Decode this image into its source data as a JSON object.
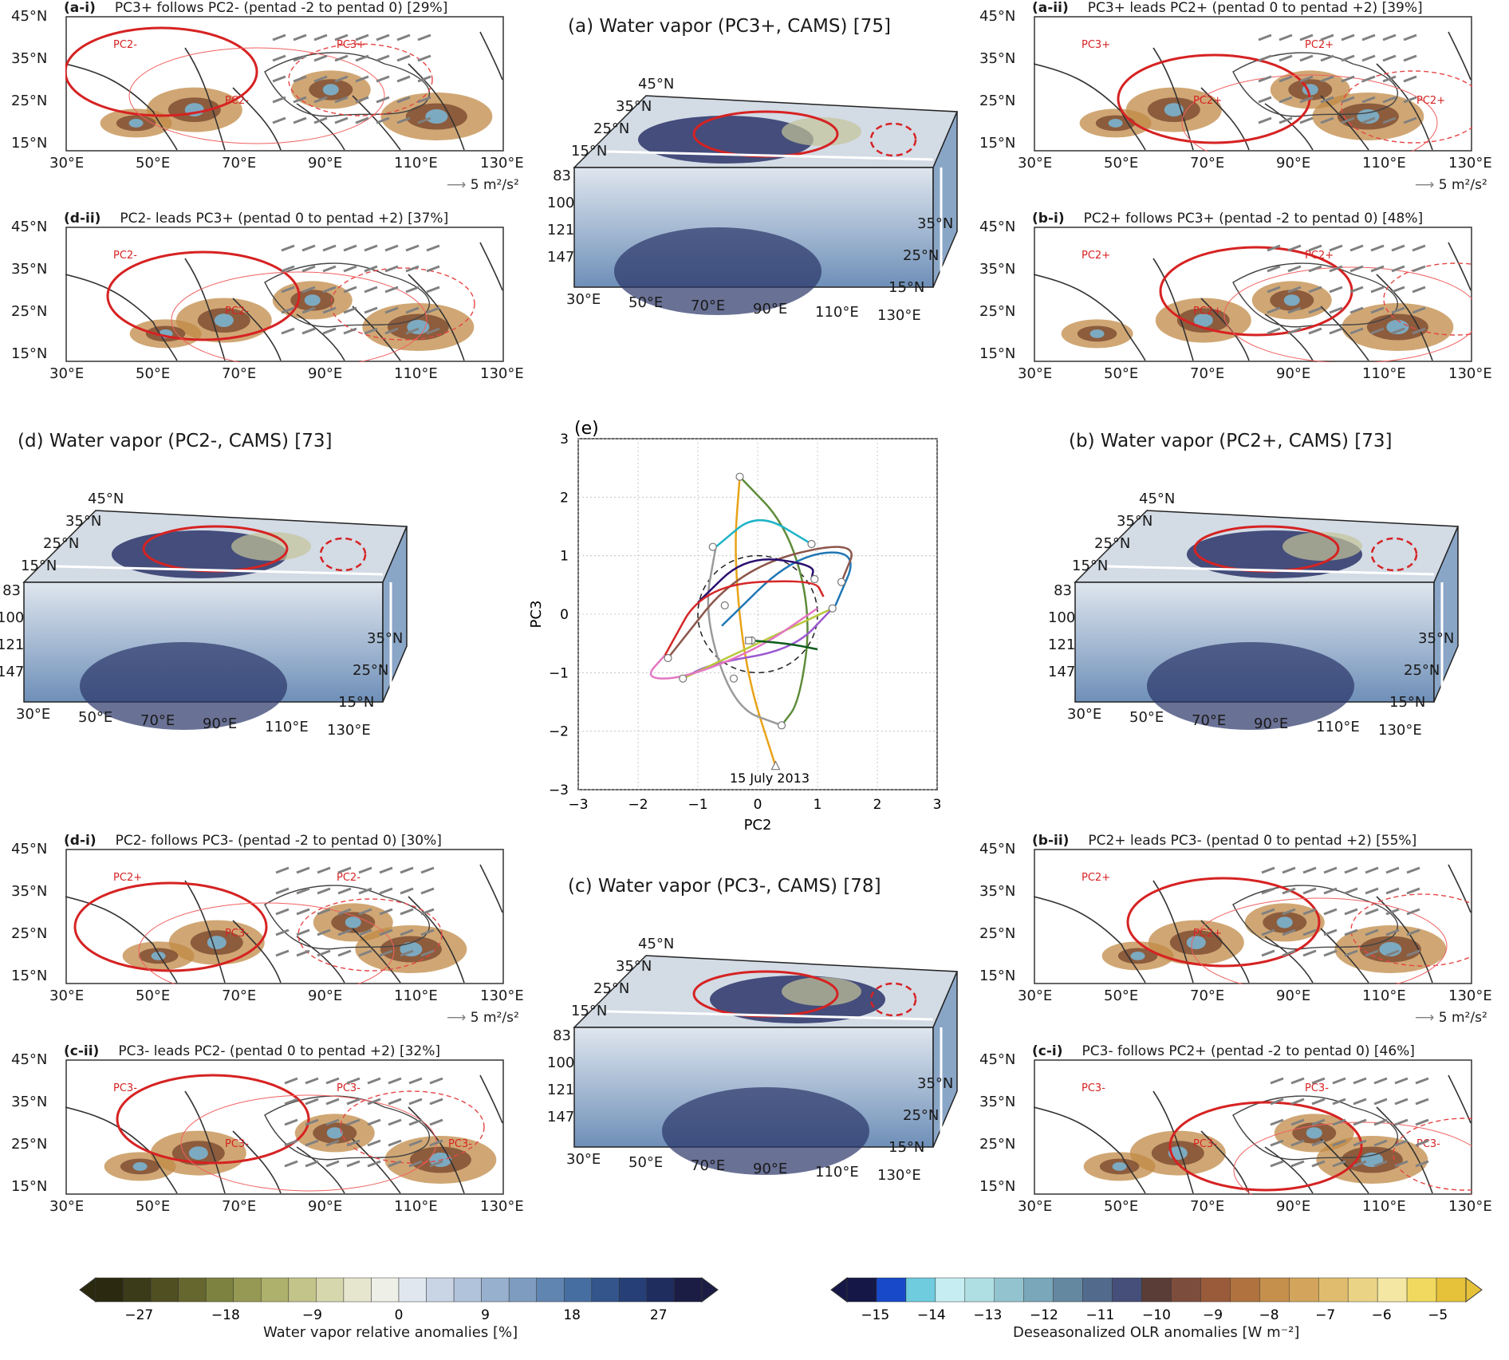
{
  "map_panels": [
    {
      "id": "a-i",
      "label": "(a-i)",
      "title": "PC3+ follows PC2- (pentad -2 to pentad 0) [29%]",
      "arrow_key": "5 m²/s²"
    },
    {
      "id": "d-ii",
      "label": "(d-ii)",
      "title": "PC2- leads PC3+ (pentad 0 to pentad +2) [37%]",
      "arrow_key": ""
    },
    {
      "id": "a-ii",
      "label": "(a-ii)",
      "title": "PC3+ leads PC2+ (pentad 0 to pentad +2) [39%]",
      "arrow_key": "5 m²/s²"
    },
    {
      "id": "b-i",
      "label": "(b-i)",
      "title": "PC2+ follows PC3+ (pentad -2 to pentad 0) [48%]",
      "arrow_key": ""
    },
    {
      "id": "d-i",
      "label": "(d-i)",
      "title": "PC2- follows PC3- (pentad -2 to pentad 0) [30%]",
      "arrow_key": "5 m²/s²"
    },
    {
      "id": "c-ii",
      "label": "(c-ii)",
      "title": "PC3- leads PC2- (pentad 0 to pentad +2) [32%]",
      "arrow_key": ""
    },
    {
      "id": "b-ii",
      "label": "(b-ii)",
      "title": "PC2+ leads PC3- (pentad 0 to pentad +2) [55%]",
      "arrow_key": "5 m²/s²"
    },
    {
      "id": "c-i",
      "label": "(c-i)",
      "title": "PC3- follows PC2+ (pentad -2 to pentad 0) [46%]",
      "arrow_key": ""
    }
  ],
  "map_lat_ticks": [
    "45°N",
    "35°N",
    "25°N",
    "15°N"
  ],
  "map_lon_ticks": [
    "30°E",
    "50°E",
    "70°E",
    "90°E",
    "110°E",
    "130°E"
  ],
  "map_contour_labels": {
    "a-i": [
      "PC2-",
      "PC2-",
      "PC3+"
    ],
    "d-ii": [
      "PC2-",
      "PC2-"
    ],
    "a-ii": [
      "PC3+",
      "PC2+",
      "PC2+",
      "PC2+"
    ],
    "b-i": [
      "PC2+",
      "PC2+",
      "PC2+"
    ],
    "d-i": [
      "PC2+",
      "PC3-",
      "PC2-"
    ],
    "c-ii": [
      "PC3-",
      "PC3-",
      "PC3-",
      "PC3-"
    ],
    "b-ii": [
      "PC2+",
      "PC2+"
    ],
    "c-i": [
      "PC3-",
      "PC3-",
      "PC3-",
      "PC3-"
    ]
  },
  "box_panels": [
    {
      "id": "a",
      "title": "(a) Water vapor (PC3+, CAMS) [75]"
    },
    {
      "id": "d",
      "title": "(d) Water vapor (PC2-, CAMS) [73]"
    },
    {
      "id": "b",
      "title": "(b) Water vapor (PC2+, CAMS) [73]"
    },
    {
      "id": "c",
      "title": "(c) Water vapor (PC3-, CAMS) [78]"
    }
  ],
  "box_lat_top": [
    "45°N",
    "35°N",
    "25°N",
    "15°N"
  ],
  "box_levels": [
    "83",
    "100",
    "121",
    "147"
  ],
  "box_lon": [
    "30°E",
    "50°E",
    "70°E",
    "90°E",
    "110°E",
    "130°E"
  ],
  "box_lat_side": [
    "35°N",
    "25°N",
    "15°N"
  ],
  "chart_data": {
    "type": "line",
    "panel_label": "(e)",
    "xlabel": "PC2",
    "ylabel": "PC3",
    "xlim": [
      -3,
      3
    ],
    "ylim": [
      -3,
      3
    ],
    "xticks": [
      "−3",
      "−2",
      "−1",
      "0",
      "1",
      "2",
      "3"
    ],
    "yticks": [
      "3",
      "2",
      "1",
      "0",
      "−1",
      "−2",
      "−3"
    ],
    "grid": true,
    "annotation": "15 July 2013",
    "start_point": [
      0.3,
      -2.6
    ],
    "reference_circle_radius": 1.0,
    "series": [
      {
        "color": "#e8a317",
        "points": [
          [
            0.3,
            -2.6
          ],
          [
            -0.2,
            -1
          ],
          [
            -0.4,
            1
          ],
          [
            -0.3,
            2.35
          ]
        ]
      },
      {
        "color": "#5e8c3a",
        "points": [
          [
            -0.3,
            2.35
          ],
          [
            0.5,
            1.5
          ],
          [
            0.9,
            0
          ],
          [
            0.7,
            -1.5
          ],
          [
            0.4,
            -1.9
          ]
        ]
      },
      {
        "color": "#1fb3c8",
        "points": [
          [
            -0.7,
            1.15
          ],
          [
            0,
            1.75
          ],
          [
            0.9,
            1.2
          ]
        ]
      },
      {
        "color": "#9a9a9a",
        "points": [
          [
            -0.7,
            1.15
          ],
          [
            -0.9,
            0
          ],
          [
            -0.4,
            -1.6
          ],
          [
            0.4,
            -1.9
          ]
        ]
      },
      {
        "color": "#1f77b4",
        "points": [
          [
            -0.6,
            -0.2
          ],
          [
            0.6,
            1
          ],
          [
            1.7,
            1.1
          ],
          [
            1.3,
            0.15
          ]
        ]
      },
      {
        "color": "#8c564b",
        "points": [
          [
            -1.5,
            -0.75
          ],
          [
            -0.3,
            0.8
          ],
          [
            1.7,
            1.3
          ],
          [
            1.4,
            0.55
          ]
        ]
      },
      {
        "color": "#2a0f6f",
        "points": [
          [
            -1,
            0.2
          ],
          [
            -0.2,
            1
          ],
          [
            0.95,
            0.85
          ],
          [
            0.9,
            0.6
          ]
        ]
      },
      {
        "color": "#d62728",
        "points": [
          [
            -1.55,
            -0.7
          ],
          [
            -0.9,
            0.5
          ],
          [
            0.95,
            0.6
          ],
          [
            1.1,
            0.3
          ]
        ]
      },
      {
        "color": "#9b59d0",
        "points": [
          [
            1.25,
            0.1
          ],
          [
            0.6,
            -0.6
          ],
          [
            -0.8,
            -0.85
          ],
          [
            -1.25,
            -1.1
          ]
        ]
      },
      {
        "color": "#b7c93a",
        "points": [
          [
            1.25,
            0.1
          ],
          [
            0,
            -0.5
          ],
          [
            -1.25,
            -1.1
          ]
        ]
      },
      {
        "color": "#e377c2",
        "points": [
          [
            -1.55,
            -0.7
          ],
          [
            -1.9,
            -1.1
          ],
          [
            -1.25,
            -1.1
          ],
          [
            0,
            -0.6
          ],
          [
            1,
            0.1
          ]
        ]
      },
      {
        "color": "#0b5a1c",
        "points": [
          [
            -0.1,
            -0.45
          ],
          [
            0.5,
            -0.5
          ],
          [
            1.0,
            -0.6
          ]
        ]
      }
    ],
    "markers": [
      [
        -0.3,
        2.35
      ],
      [
        -0.75,
        1.15
      ],
      [
        0.9,
        1.2
      ],
      [
        -0.55,
        0.15
      ],
      [
        -1.5,
        -0.75
      ],
      [
        -1.25,
        -1.1
      ],
      [
        0.95,
        0.6
      ],
      [
        1.4,
        0.55
      ],
      [
        1.25,
        0.1
      ],
      [
        -0.4,
        -1.1
      ],
      [
        0.4,
        -1.9
      ],
      [
        -0.1,
        -0.45
      ]
    ]
  },
  "colorbar_left": {
    "title": "Water vapor relative anomalies [%]",
    "ticks": [
      "−27",
      "−18",
      "−9",
      "0",
      "9",
      "18",
      "27"
    ],
    "colors": [
      "#2b2a10",
      "#3b3b1a",
      "#4f4f22",
      "#65672e",
      "#7d8240",
      "#969954",
      "#adb16c",
      "#c2c48a",
      "#d6d7ad",
      "#e6e6cf",
      "#eeefe6",
      "#e1e7ef",
      "#c9d5e5",
      "#b0c3da",
      "#97b0cd",
      "#7d9cc0",
      "#6185b1",
      "#476ea0",
      "#33558b",
      "#263f76",
      "#1e2c5e",
      "#1b1d45"
    ]
  },
  "colorbar_right": {
    "title": "Deseasonalized OLR anomalies [W m⁻²]",
    "ticks": [
      "−15",
      "−14",
      "−13",
      "−12",
      "−11",
      "−10",
      "−9",
      "−8",
      "−7",
      "−6",
      "−5"
    ],
    "colors": [
      "#151846",
      "#1749c9",
      "#6fcbde",
      "#c6eef2",
      "#afdfe3",
      "#93c3cf",
      "#7aa7ba",
      "#6588a1",
      "#526b8d",
      "#454f79",
      "#5a3d36",
      "#7c4d3c",
      "#9a5b3a",
      "#b07340",
      "#c58f4c",
      "#d3a55c",
      "#e0bd6e",
      "#ebd386",
      "#f3e7a3",
      "#f0d95e",
      "#e6c23a"
    ]
  }
}
